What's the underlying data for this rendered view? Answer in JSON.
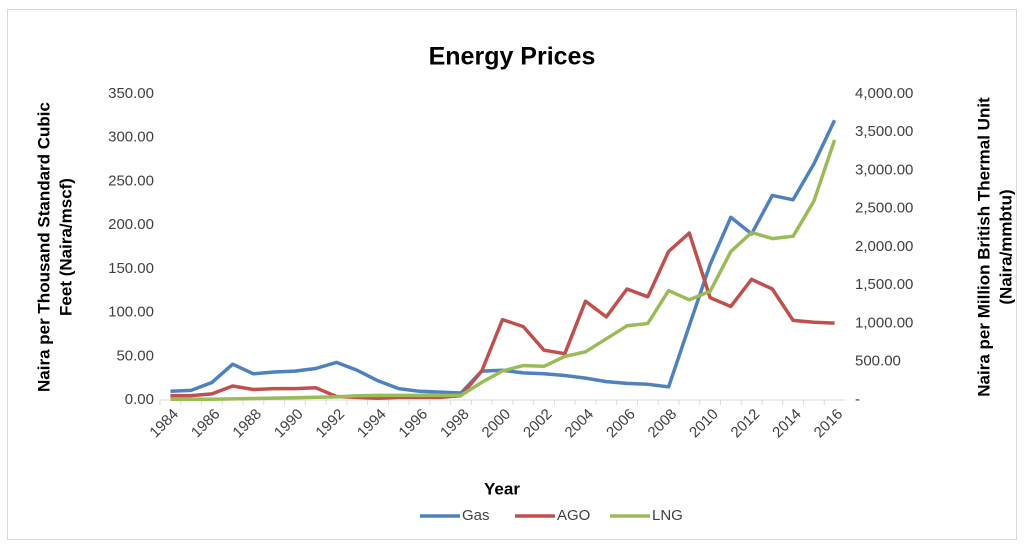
{
  "chart_data": {
    "type": "line",
    "title": "Energy Prices",
    "xlabel": "Year",
    "ylabel": [
      "Naira per Thousand Standard Cubic",
      "Feet (Naira/mscf)"
    ],
    "y2label": [
      "Naira per Million British Thermal Unit",
      "(Naira/mmbtu)"
    ],
    "categories": [
      "1984",
      null,
      "1986",
      null,
      "1988",
      null,
      "1990",
      null,
      "1992",
      null,
      "1994",
      null,
      "1996",
      null,
      "1998",
      null,
      "2000",
      null,
      "2002",
      null,
      "2004",
      null,
      "2006",
      null,
      "2008",
      null,
      "2010",
      null,
      "2012",
      null,
      "2014",
      null,
      "2016"
    ],
    "series": [
      {
        "name": "Gas",
        "color": "#4f81bd",
        "axis": "y",
        "values": [
          10,
          11,
          20,
          41,
          30,
          32,
          33,
          36,
          43,
          34,
          22,
          13,
          10,
          9,
          8,
          33,
          34,
          31,
          30,
          28,
          25,
          21,
          19,
          18,
          15,
          85,
          155,
          209,
          190,
          234,
          229,
          270,
          320
        ]
      },
      {
        "name": "AGO",
        "color": "#c0504d",
        "axis": "y",
        "values": [
          5,
          5,
          7,
          16,
          12,
          13,
          13,
          14,
          4,
          3,
          2,
          3,
          3,
          3,
          5,
          33,
          92,
          84,
          57,
          53,
          113,
          95,
          127,
          118,
          170,
          191,
          117,
          107,
          138,
          127,
          91,
          89,
          88
        ]
      },
      {
        "name": "LNG",
        "color": "#9bbb59",
        "axis": "y2",
        "values": [
          10,
          10,
          10,
          15,
          20,
          25,
          30,
          35,
          40,
          55,
          60,
          60,
          60,
          60,
          60,
          230,
          380,
          450,
          440,
          570,
          630,
          800,
          970,
          1000,
          1430,
          1310,
          1420,
          1940,
          2190,
          2110,
          2140,
          2600,
          3400
        ]
      }
    ],
    "ylim": [
      0,
      350
    ],
    "yticks": [
      {
        "value": 0,
        "label": "0.00"
      },
      {
        "value": 50,
        "label": "50.00"
      },
      {
        "value": 100,
        "label": "100.00"
      },
      {
        "value": 150,
        "label": "150.00"
      },
      {
        "value": 200,
        "label": "200.00"
      },
      {
        "value": 250,
        "label": "250.00"
      },
      {
        "value": 300,
        "label": "300.00"
      },
      {
        "value": 350,
        "label": "350.00"
      }
    ],
    "y2lim": [
      0,
      4000
    ],
    "y2ticks": [
      {
        "value": 0,
        "label": "-"
      },
      {
        "value": 500,
        "label": "500.00"
      },
      {
        "value": 1000,
        "label": "1,000.00"
      },
      {
        "value": 1500,
        "label": "1,500.00"
      },
      {
        "value": 2000,
        "label": "2,000.00"
      },
      {
        "value": 2500,
        "label": "2,500.00"
      },
      {
        "value": 3000,
        "label": "3,000.00"
      },
      {
        "value": 3500,
        "label": "3,500.00"
      },
      {
        "value": 4000,
        "label": "4,000.00"
      }
    ],
    "grid": false,
    "legend": "bottom"
  }
}
